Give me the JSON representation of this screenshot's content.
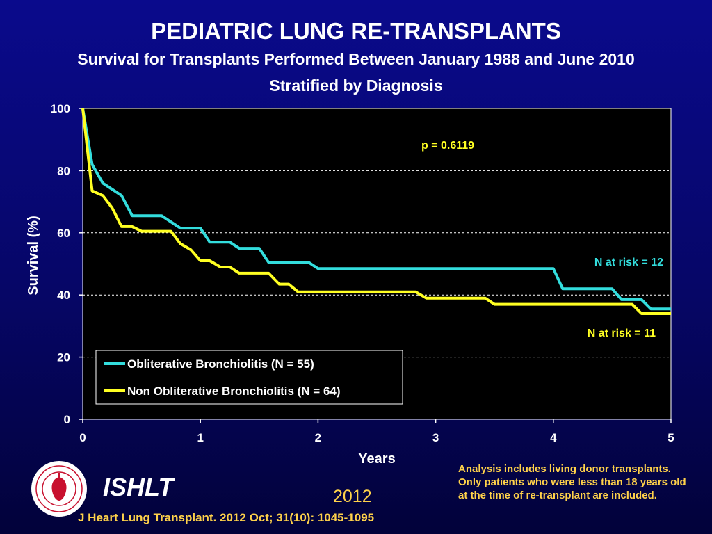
{
  "title": "PEDIATRIC LUNG RE-TRANSPLANTS",
  "subtitle_line1": "Survival for Transplants Performed Between January 1988 and June 2010",
  "subtitle_line2": "Stratified by Diagnosis",
  "chart_data": {
    "type": "line",
    "xlabel": "Years",
    "ylabel": "Survival (%)",
    "xlim": [
      0,
      5
    ],
    "ylim": [
      0,
      100
    ],
    "xticks": [
      0,
      1,
      2,
      3,
      4,
      5
    ],
    "yticks": [
      0,
      20,
      40,
      60,
      80,
      100
    ],
    "grid": "horizontal dashed",
    "legend_position": "bottom-left",
    "annotations": {
      "p_value": "p = 0.6119",
      "n_at_risk_1": "N at risk =  12",
      "n_at_risk_2": "N at risk =  11"
    },
    "series": [
      {
        "name": "Obliterative Bronchiolitis (N = 55)",
        "color": "#33dddd",
        "points": [
          [
            0,
            100
          ],
          [
            0.08,
            82
          ],
          [
            0.17,
            76
          ],
          [
            0.33,
            72
          ],
          [
            0.42,
            65.5
          ],
          [
            0.67,
            65.5
          ],
          [
            0.83,
            61.5
          ],
          [
            1.0,
            61.5
          ],
          [
            1.08,
            57
          ],
          [
            1.25,
            57
          ],
          [
            1.33,
            55
          ],
          [
            1.5,
            55
          ],
          [
            1.58,
            50.5
          ],
          [
            1.92,
            50.5
          ],
          [
            2.0,
            48.5
          ],
          [
            4.0,
            48.5
          ],
          [
            4.08,
            42
          ],
          [
            4.5,
            42
          ],
          [
            4.58,
            38.5
          ],
          [
            4.75,
            38.5
          ],
          [
            4.83,
            35.5
          ],
          [
            5.0,
            35.5
          ]
        ]
      },
      {
        "name": "Non Obliterative Bronchiolitis (N = 64)",
        "color": "#ffff22",
        "points": [
          [
            0,
            100
          ],
          [
            0.08,
            73.5
          ],
          [
            0.17,
            72
          ],
          [
            0.25,
            68
          ],
          [
            0.33,
            62
          ],
          [
            0.42,
            62
          ],
          [
            0.5,
            60.5
          ],
          [
            0.75,
            60.5
          ],
          [
            0.83,
            56.5
          ],
          [
            0.92,
            54.5
          ],
          [
            1.0,
            51
          ],
          [
            1.08,
            51
          ],
          [
            1.17,
            49
          ],
          [
            1.25,
            49
          ],
          [
            1.33,
            47
          ],
          [
            1.58,
            47
          ],
          [
            1.67,
            43.5
          ],
          [
            1.75,
            43.5
          ],
          [
            1.83,
            41
          ],
          [
            2.83,
            41
          ],
          [
            2.92,
            39
          ],
          [
            3.42,
            39
          ],
          [
            3.5,
            37
          ],
          [
            4.67,
            37
          ],
          [
            4.75,
            34
          ],
          [
            5.0,
            34
          ]
        ]
      }
    ]
  },
  "footer": {
    "brand": "ISHLT",
    "year": "2012",
    "citation": "J Heart Lung Transplant.  2012 Oct; 31(10): 1045-1095",
    "note": "Analysis includes living donor transplants. Only patients who were less than 18 years old at the time of re-transplant are included."
  }
}
